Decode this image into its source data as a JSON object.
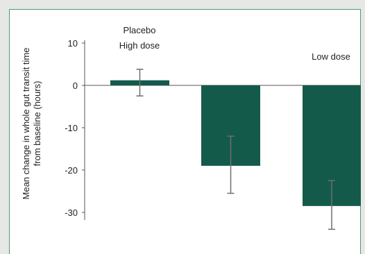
{
  "chart_data": {
    "type": "bar",
    "categories": [
      "Placebo",
      "High dose",
      "Low dose"
    ],
    "values": [
      1.2,
      -19.0,
      -28.5
    ],
    "error_low": [
      -2.5,
      -25.5,
      -34.0
    ],
    "error_high": [
      3.8,
      -12.0,
      -22.5
    ],
    "ylabel_line1": "Mean change in  whole gut transit time",
    "ylabel_line2": "from baseline  (hours)",
    "ylim": [
      -35,
      11
    ],
    "yticks": [
      10,
      0,
      -10,
      -20,
      -30
    ],
    "ytick_labels": [
      "10",
      "0",
      "-10",
      "-20",
      "-30"
    ],
    "grid": false,
    "bar_color": "#145a4b",
    "errorbar_color": "#6e6e6e"
  }
}
